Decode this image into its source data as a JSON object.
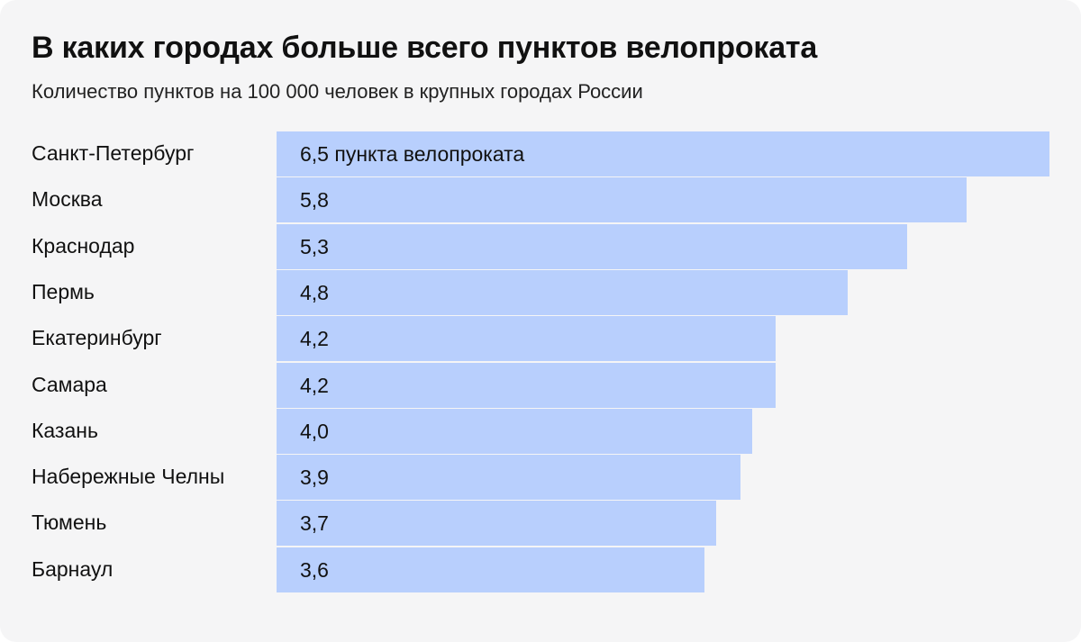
{
  "title": "В каких городах больше всего пунктов велопроката",
  "subtitle": "Количество пунктов на 100 000 человек в крупных городах России",
  "colors": {
    "background": "#f5f5f6",
    "bar": "#b8cffd",
    "text": "#111111"
  },
  "chart_data": {
    "type": "bar",
    "orientation": "horizontal",
    "title": "В каких городах больше всего пунктов велопроката",
    "subtitle": "Количество пунктов на 100 000 человек в крупных городах России",
    "categories": [
      "Санкт-Петербург",
      "Москва",
      "Краснодар",
      "Пермь",
      "Екатеринбург",
      "Самара",
      "Казань",
      "Набережные Челны",
      "Тюмень",
      "Барнаул"
    ],
    "values": [
      6.5,
      5.8,
      5.3,
      4.8,
      4.2,
      4.2,
      4.0,
      3.9,
      3.7,
      3.6
    ],
    "value_labels": [
      "6,5 пункта велопроката",
      "5,8",
      "5,3",
      "4,8",
      "4,2",
      "4,2",
      "4,0",
      "3,9",
      "3,7",
      "3,6"
    ],
    "xlim": [
      0,
      6.5
    ],
    "grid": false,
    "legend": "none"
  }
}
